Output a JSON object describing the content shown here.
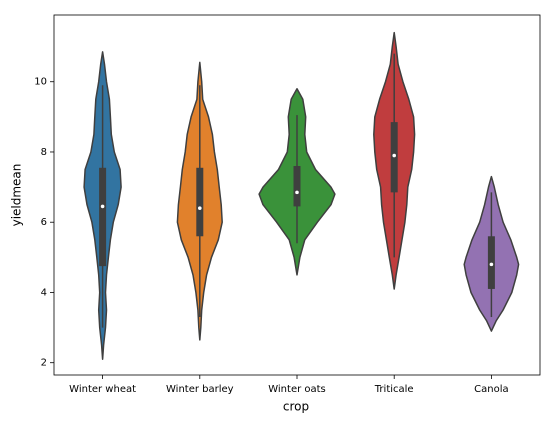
{
  "chart_data": {
    "type": "violin",
    "xlabel": "crop",
    "ylabel": "yieldmean",
    "categories": [
      "Winter wheat",
      "Winter barley",
      "Winter oats",
      "Triticale",
      "Canola"
    ],
    "ylim": [
      1.65,
      11.9
    ],
    "yticks": [
      2,
      4,
      6,
      8,
      10
    ],
    "violins": [
      {
        "color": "#3274a1",
        "y": [
          2.1,
          2.5,
          3,
          3.5,
          4,
          4.5,
          5,
          5.5,
          6,
          6.5,
          7,
          7.5,
          8,
          8.5,
          9,
          9.5,
          10,
          10.5,
          10.85
        ],
        "width": [
          0,
          0.01,
          0.03,
          0.04,
          0.03,
          0.04,
          0.06,
          0.08,
          0.11,
          0.16,
          0.19,
          0.18,
          0.12,
          0.09,
          0.08,
          0.07,
          0.04,
          0.02,
          0
        ],
        "quartiles": [
          4.75,
          6.45,
          7.55
        ],
        "whiskers": [
          3.0,
          9.9
        ]
      },
      {
        "color": "#e1812c",
        "y": [
          2.65,
          3,
          3.5,
          4,
          4.5,
          5,
          5.5,
          6,
          6.5,
          7,
          7.5,
          8,
          8.5,
          9,
          9.5,
          10,
          10.55
        ],
        "width": [
          0,
          0.01,
          0.02,
          0.04,
          0.07,
          0.12,
          0.19,
          0.23,
          0.22,
          0.2,
          0.18,
          0.15,
          0.13,
          0.09,
          0.03,
          0.02,
          0
        ],
        "quartiles": [
          5.6,
          6.4,
          7.55
        ],
        "whiskers": [
          3.3,
          9.9
        ]
      },
      {
        "color": "#3a923a",
        "y": [
          4.5,
          5,
          5.5,
          6,
          6.5,
          6.8,
          7,
          7.5,
          8,
          8.5,
          9,
          9.5,
          9.8
        ],
        "width": [
          0,
          0.03,
          0.08,
          0.21,
          0.35,
          0.39,
          0.35,
          0.19,
          0.1,
          0.08,
          0.09,
          0.06,
          0
        ],
        "quartiles": [
          6.45,
          6.85,
          7.6
        ],
        "whiskers": [
          5.4,
          9.05
        ]
      },
      {
        "color": "#c03d3e",
        "y": [
          4.1,
          4.5,
          5,
          5.5,
          6,
          6.5,
          7,
          7.5,
          8,
          8.5,
          9,
          9.5,
          10,
          10.5,
          11,
          11.4
        ],
        "width": [
          0,
          0.02,
          0.05,
          0.08,
          0.11,
          0.13,
          0.14,
          0.18,
          0.2,
          0.21,
          0.2,
          0.15,
          0.09,
          0.04,
          0.02,
          0
        ],
        "quartiles": [
          6.85,
          7.9,
          8.85
        ],
        "whiskers": [
          5.0,
          10.8
        ]
      },
      {
        "color": "#9372b2",
        "y": [
          2.9,
          3.2,
          3.5,
          4,
          4.5,
          4.8,
          5,
          5.5,
          6,
          6.5,
          7,
          7.3
        ],
        "width": [
          0,
          0.05,
          0.12,
          0.21,
          0.26,
          0.28,
          0.26,
          0.2,
          0.12,
          0.07,
          0.03,
          0
        ],
        "quartiles": [
          4.1,
          4.8,
          5.6
        ],
        "whiskers": [
          3.3,
          6.85
        ]
      }
    ]
  }
}
